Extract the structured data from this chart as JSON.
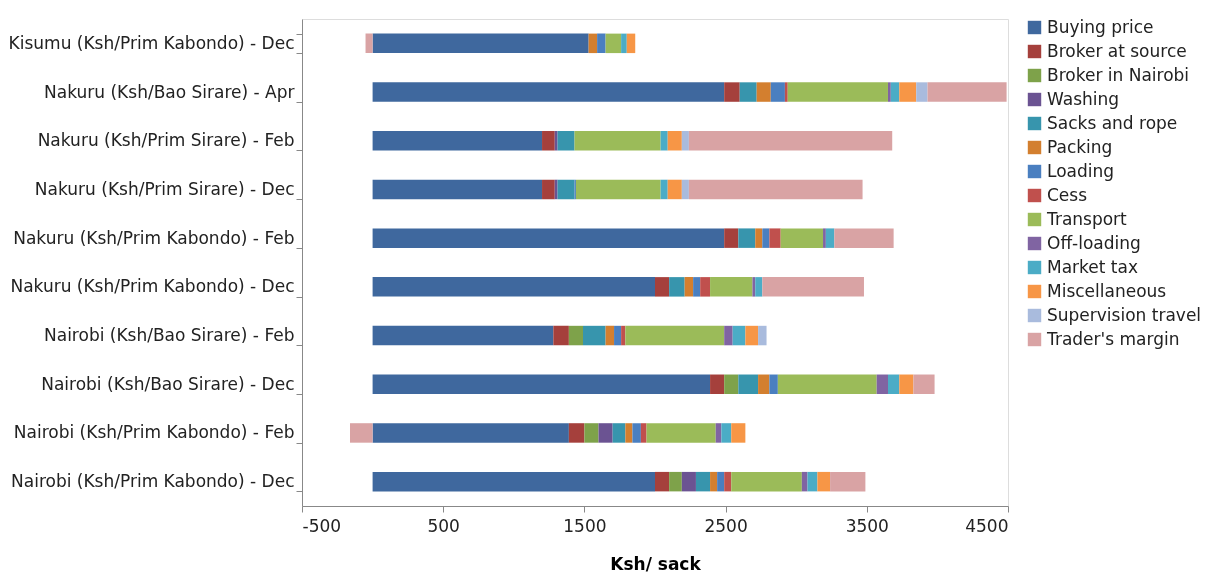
{
  "chart_data": {
    "type": "bar",
    "orientation": "horizontal",
    "stacked": true,
    "xlabel": "Ksh/ sack",
    "legend": "right",
    "grid": false,
    "categories": [
      "Kisumu (Ksh/Prim Kabondo) - Dec",
      "Nakuru (Ksh/Bao Sirare) - Apr",
      "Nakuru (Ksh/Prim Sirare) - Feb",
      "Nakuru (Ksh/Prim Sirare) - Dec",
      "Nakuru (Ksh/Prim Kabondo) - Feb",
      "Nakuru (Ksh/Prim Kabondo) - Dec",
      "Nairobi (Ksh/Bao Sirare) - Feb",
      "Nairobi (Ksh/Bao Sirare) - Dec",
      "Nairobi (Ksh/Prim Kabondo) - Feb",
      "Nairobi (Ksh/Prim Kabondo) - Dec"
    ],
    "xlim": [
      -500,
      4500
    ],
    "xticks": [
      -500,
      500,
      1500,
      2500,
      3500,
      4500
    ],
    "series": [
      {
        "name": "Buying price",
        "color": "#3f689e",
        "values": [
          1530,
          2490,
          1200,
          1200,
          2490,
          2000,
          1280,
          2390,
          1390,
          2000
        ]
      },
      {
        "name": "Broker at source",
        "color": "#a5403c",
        "values": [
          null,
          110,
          90,
          90,
          100,
          100,
          110,
          100,
          110,
          100
        ]
      },
      {
        "name": "Broker in Nairobi",
        "color": "#7ea24a",
        "values": [
          null,
          null,
          null,
          null,
          null,
          null,
          100,
          100,
          100,
          90
        ]
      },
      {
        "name": "Washing",
        "color": "#6b5392",
        "values": [
          null,
          null,
          20,
          20,
          null,
          null,
          null,
          null,
          100,
          100
        ]
      },
      {
        "name": "Sacks and rope",
        "color": "#3795ad",
        "values": [
          null,
          120,
          120,
          120,
          120,
          110,
          160,
          140,
          90,
          100
        ]
      },
      {
        "name": "Packing",
        "color": "#d37f2f",
        "values": [
          60,
          100,
          null,
          null,
          50,
          60,
          60,
          80,
          50,
          50
        ]
      },
      {
        "name": "Loading",
        "color": "#4a7fc0",
        "values": [
          60,
          100,
          null,
          10,
          50,
          50,
          50,
          60,
          60,
          50
        ]
      },
      {
        "name": "Cess",
        "color": "#c0504d",
        "values": [
          null,
          20,
          null,
          null,
          80,
          70,
          30,
          null,
          40,
          50
        ]
      },
      {
        "name": "Transport",
        "color": "#9bbb59",
        "values": [
          110,
          710,
          610,
          600,
          300,
          300,
          700,
          700,
          490,
          500
        ]
      },
      {
        "name": "Off-loading",
        "color": "#8064a2",
        "values": [
          null,
          20,
          null,
          null,
          20,
          20,
          60,
          80,
          40,
          40
        ]
      },
      {
        "name": "Market tax",
        "color": "#4bacc6",
        "values": [
          40,
          60,
          50,
          50,
          60,
          50,
          90,
          80,
          70,
          70
        ]
      },
      {
        "name": "Miscellaneous",
        "color": "#f79646",
        "values": [
          60,
          120,
          100,
          100,
          null,
          null,
          90,
          100,
          100,
          90
        ]
      },
      {
        "name": "Supervision travel",
        "color": "#a9bbdd",
        "values": [
          null,
          80,
          50,
          50,
          null,
          null,
          60,
          null,
          null,
          null
        ]
      },
      {
        "name": "Trader's margin",
        "color": "#d9a3a4",
        "values": [
          -50,
          560,
          1440,
          1230,
          420,
          720,
          null,
          150,
          -160,
          250
        ]
      }
    ]
  }
}
